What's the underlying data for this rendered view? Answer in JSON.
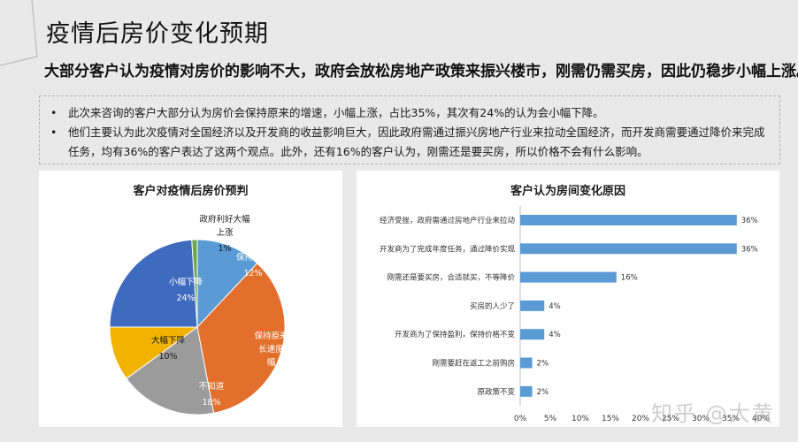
{
  "page": {
    "title": "疫情后房价变化预期",
    "subtitle": "大部分客户认为疫情对房价的影响不大，政府会放松房地产政策来振兴楼市，刚需仍需买房，因此仍稳步小幅上涨。",
    "bullets": [
      {
        "marker": "•",
        "text": "此次来咨询的客户大部分认为房价会保持原来的增速，小幅上涨，占比35%，其次有24%的认为会小幅下降。"
      },
      {
        "marker": "•",
        "text": "他们主要认为此次疫情对全国经济以及开发商的收益影响巨大，因此政府需通过振兴房地产行业来拉动全国经济，而开发商需要通过降价来完成任务，均有36%的客户表达了这两个观点。此外，还有16%的客户认为，刚需还是要买房，所以价格不会有什么影响。"
      }
    ],
    "watermark": "知乎 @大黄"
  },
  "chart_data": [
    {
      "type": "pie",
      "title": "客户对疫情后房价预判",
      "slices": [
        {
          "label": "保持不变",
          "value": 12,
          "value_label": "12%",
          "color": "#5b9bd5"
        },
        {
          "label": "保持原来的增长速度，小幅上涨",
          "value": 35,
          "value_label": "35%",
          "color": "#e2702c"
        },
        {
          "label": "不知道",
          "value": 18,
          "value_label": "18%",
          "color": "#9b9b9b"
        },
        {
          "label": "大幅下降",
          "value": 10,
          "value_label": "10%",
          "color": "#f0b400"
        },
        {
          "label": "小幅下降",
          "value": 24,
          "value_label": "24%",
          "color": "#3f6bbf"
        },
        {
          "label": "政府利好大幅上涨",
          "value": 1,
          "value_label": "1%",
          "color": "#6aa84f"
        }
      ]
    },
    {
      "type": "bar",
      "orientation": "horizontal",
      "title": "客户认为房间变化原因",
      "categories": [
        "经济受挫，政府需通过房地产行业来拉动",
        "开发商为了完成年度任务，通过降价实现",
        "刚需还是要买房，合适就买，不等降价",
        "买房的人少了",
        "开发商为了保持盈利，保持价格不变",
        "刚需要赶在返工之前购房",
        "原政策不变"
      ],
      "values": [
        36,
        36,
        16,
        4,
        4,
        2,
        2
      ],
      "value_labels": [
        "36%",
        "36%",
        "16%",
        "4%",
        "4%",
        "2%",
        "2%"
      ],
      "xlim": [
        0,
        40
      ],
      "xticks": [
        "0%",
        "5%",
        "10%",
        "15%",
        "20%",
        "25%",
        "30%",
        "35%",
        "40%"
      ],
      "bar_color": "#5b9bd5"
    }
  ]
}
